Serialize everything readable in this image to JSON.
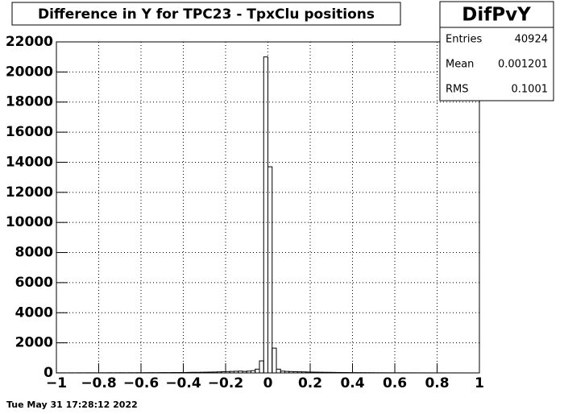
{
  "chart_data": {
    "type": "histogram",
    "title": "Difference in Y for TPC23 - TpxClu positions",
    "stats": {
      "name": "DifPvY",
      "entries_label": "Entries",
      "entries": 40924,
      "mean_label": "Mean",
      "mean": 0.001201,
      "rms_label": "RMS",
      "rms": 0.1001
    },
    "footer": "Tue May 31 17:28:12 2022",
    "bins": [
      -1,
      -0.98,
      -0.96,
      -0.94,
      -0.92,
      -0.9,
      -0.88,
      -0.86,
      -0.84,
      -0.82,
      -0.8,
      -0.78,
      -0.76,
      -0.74,
      -0.72,
      -0.7,
      -0.68,
      -0.66,
      -0.64,
      -0.62,
      -0.6,
      -0.58,
      -0.56,
      -0.54,
      -0.52,
      -0.5,
      -0.48,
      -0.46,
      -0.44,
      -0.42,
      -0.4,
      -0.38,
      -0.36,
      -0.34,
      -0.32,
      -0.3,
      -0.28,
      -0.26,
      -0.24,
      -0.22,
      -0.2,
      -0.18,
      -0.16,
      -0.14,
      -0.12,
      -0.1,
      -0.08,
      -0.06,
      -0.04,
      -0.02,
      0,
      0.02,
      0.04,
      0.06,
      0.08,
      0.1,
      0.12,
      0.14,
      0.16,
      0.18,
      0.2,
      0.22,
      0.24,
      0.26,
      0.28,
      0.3,
      0.32,
      0.34,
      0.36,
      0.38,
      0.4,
      0.42,
      0.44,
      0.46,
      0.48,
      0.5,
      0.52,
      0.54,
      0.56,
      0.58,
      0.6,
      0.62,
      0.64,
      0.66,
      0.68,
      0.7,
      0.72,
      0.74,
      0.76,
      0.78,
      0.8,
      0.82,
      0.84,
      0.86,
      0.88,
      0.9,
      0.92,
      0.94,
      0.96,
      0.98,
      1
    ],
    "values": [
      5,
      6,
      4,
      7,
      5,
      8,
      6,
      9,
      7,
      8,
      10,
      8,
      12,
      9,
      11,
      13,
      10,
      14,
      12,
      15,
      14,
      16,
      18,
      15,
      20,
      22,
      19,
      25,
      24,
      28,
      30,
      35,
      40,
      38,
      45,
      50,
      55,
      60,
      70,
      80,
      90,
      100,
      110,
      120,
      100,
      120,
      150,
      250,
      800,
      21000,
      13700,
      1650,
      250,
      120,
      100,
      90,
      80,
      75,
      70,
      60,
      55,
      50,
      45,
      40,
      38,
      35,
      30,
      28,
      25,
      22,
      20,
      18,
      16,
      15,
      14,
      12,
      11,
      10,
      9,
      8,
      8,
      7,
      7,
      6,
      6,
      5,
      5,
      4,
      4,
      3,
      3,
      3,
      2,
      2,
      2,
      1,
      1,
      1,
      1,
      1
    ],
    "color": "#000000",
    "xlim": [
      -1,
      1
    ],
    "xticks": [
      {
        "value": -1,
        "label": "−1"
      },
      {
        "value": -0.8,
        "label": "−0.8"
      },
      {
        "value": -0.6,
        "label": "−0.6"
      },
      {
        "value": -0.4,
        "label": "−0.4"
      },
      {
        "value": -0.2,
        "label": "−0.2"
      },
      0,
      0.2,
      0.4,
      0.6,
      0.8,
      1
    ],
    "ylim": [
      0,
      22000
    ],
    "yticks": [
      0,
      2000,
      4000,
      6000,
      8000,
      10000,
      12000,
      14000,
      16000,
      18000,
      20000,
      22000
    ],
    "grid": true
  }
}
